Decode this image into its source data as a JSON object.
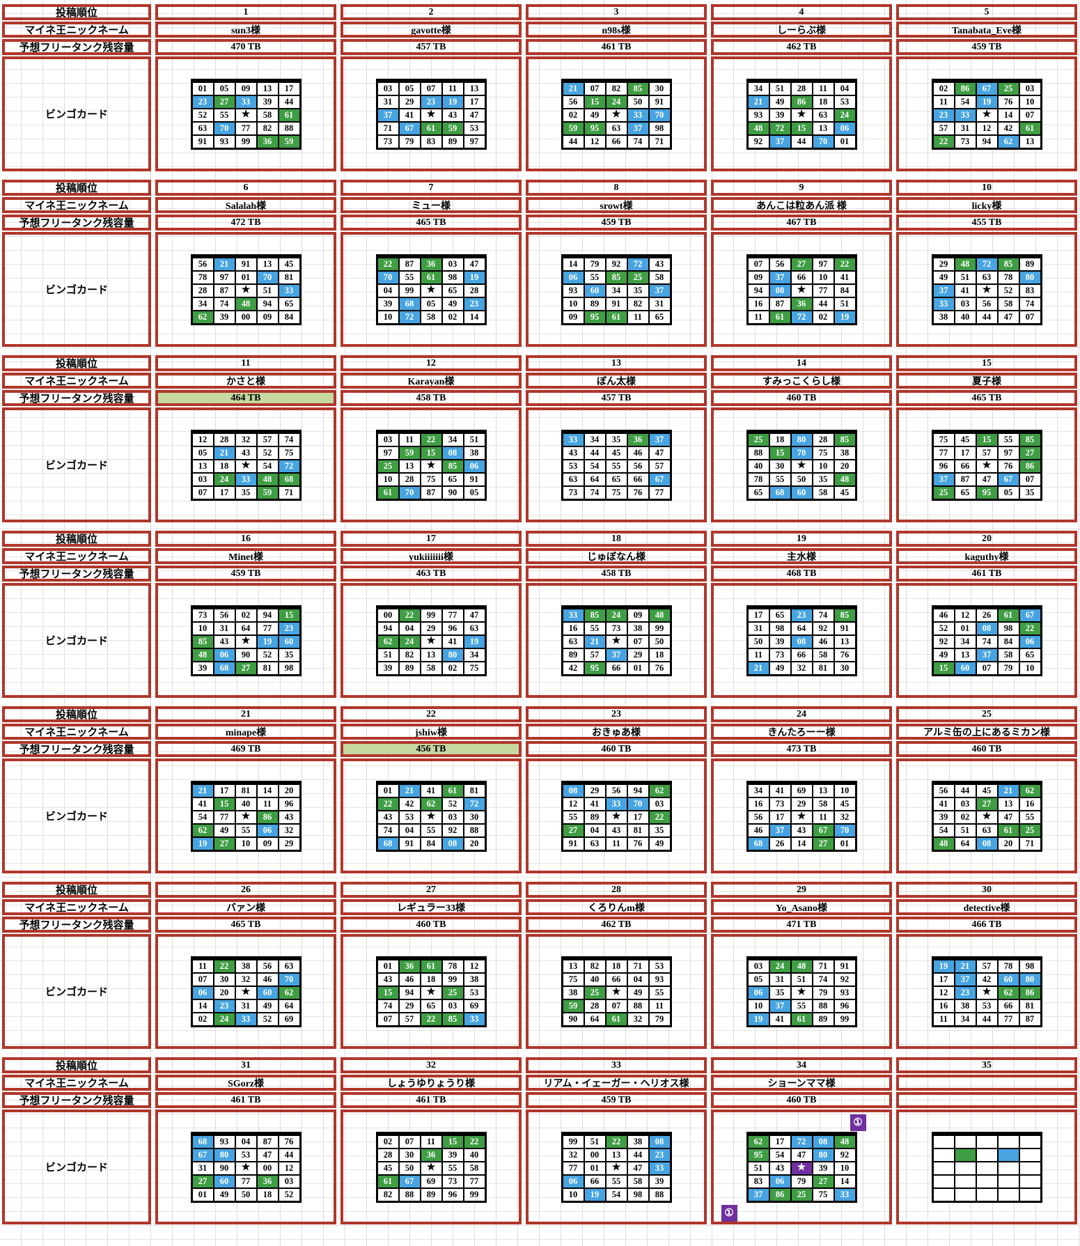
{
  "colors": {
    "red": "#b0362a",
    "blue": "#47a4e1",
    "green": "#3f9d43",
    "purple": "#7030a0",
    "highlight": "#c6d7a0",
    "grid_line": "#dcdcdc",
    "card_border": "#000000"
  },
  "labels": {
    "order": "投稿順位",
    "nickname": "マイネ王ニックネーム",
    "capacity": "予想フリータンク残容量",
    "card": "ビンゴカード"
  },
  "badge_glyph": "①",
  "star_glyph": "★",
  "blocks": [
    {
      "entries": [
        {
          "order": "1",
          "name": "sun3様",
          "tb": "470 TB",
          "hl": false,
          "rows": [
            "01w 05w 09w 13w 17w",
            "23b 27g 33b 39w 44w",
            "52w 55w *w 58w 61g",
            "63w 70b 77w 82w 88w",
            "91w 93w 99w 36g 59g"
          ]
        },
        {
          "order": "2",
          "name": "gavotte様",
          "tb": "457 TB",
          "hl": false,
          "rows": [
            "03w 05w 07w 11w 13w",
            "31w 29w 23b 19b 17w",
            "37b 41w *w 43w 47w",
            "71w 67b 61g 59g 53w",
            "73w 79w 83w 89w 97w"
          ]
        },
        {
          "order": "3",
          "name": "n98s様",
          "tb": "461 TB",
          "hl": false,
          "rows": [
            "21b 07w 82w 85g 30w",
            "56w 15g 24g 50w 91w",
            "02w 49w *w 33b 70b",
            "59g 95g 63w 37b 98w",
            "44w 12w 66w 74w 71w"
          ]
        },
        {
          "order": "4",
          "name": "しーらぶ様",
          "tb": "462 TB",
          "hl": false,
          "rows": [
            "34w 51w 28w 11w 04w",
            "21b 49w 86g 18w 53w",
            "93w 39w *w 63w 24g",
            "48g 72g 15g 13w 06b",
            "92w 37b 44w 70b 01w"
          ]
        },
        {
          "order": "5",
          "name": "Tanabata_Eve様",
          "tb": "459 TB",
          "hl": false,
          "rows": [
            "02w 86g 67b 25g 03w",
            "11w 54w 19b 76w 10w",
            "23b 33b *w 14w 07w",
            "57w 31w 12w 42w 61g",
            "22g 73w 94w 62b 13w"
          ]
        }
      ]
    },
    {
      "entries": [
        {
          "order": "6",
          "name": "Salalah様",
          "tb": "472 TB",
          "hl": false,
          "rows": [
            "56w 21b 91w 13w 45w",
            "78w 97w 01w 70b 81w",
            "28w 87w *w 51w 33b",
            "34w 74w 48g 94w 65w",
            "62g 39w 00w 09w 84w"
          ]
        },
        {
          "order": "7",
          "name": "ミュー様",
          "tb": "465 TB",
          "hl": false,
          "rows": [
            "22g 87w 36g 03w 47w",
            "70b 55w 61g 98w 19b",
            "04w 99w *w 65w 28w",
            "39w 68b 05w 49w 23b",
            "10w 72b 58w 02w 14w"
          ]
        },
        {
          "order": "8",
          "name": "srowt様",
          "tb": "459 TB",
          "hl": false,
          "rows": [
            "14w 79w 92w 72b 43w",
            "06b 55w 85g 25g 58w",
            "93w 60b 34w 35w 37b",
            "10w 89w 91w 82w 31w",
            "09w 95g 61g 11w 65w"
          ]
        },
        {
          "order": "9",
          "name": "あんこは粒あん派 様",
          "tb": "467 TB",
          "hl": false,
          "rows": [
            "07w 56w 27g 97w 22g",
            "09w 37b 66w 10w 41w",
            "94w 08b *w 77w 84w",
            "16w 87w 36g 44w 51w",
            "11w 61g 72b 02w 19b"
          ]
        },
        {
          "order": "10",
          "name": "licky様",
          "tb": "455 TB",
          "hl": false,
          "rows": [
            "29w 48g 72b 85g 89w",
            "49w 51w 63w 78w 80b",
            "37b 41w *w 52w 83w",
            "33b 03w 56w 58w 74w",
            "38w 40w 44w 47w 07w"
          ]
        }
      ]
    },
    {
      "entries": [
        {
          "order": "11",
          "name": "かさと様",
          "tb": "464 TB",
          "hl": true,
          "rows": [
            "12w 28w 32w 57w 74w",
            "05w 21b 43w 52w 75w",
            "13w 18w *w 54w 72b",
            "03w 24g 33b 48g 68g",
            "07w 17w 35w 59g 71w"
          ]
        },
        {
          "order": "12",
          "name": "Karayan様",
          "tb": "458 TB",
          "hl": false,
          "rows": [
            "03w 11w 22g 34w 51w",
            "97w 59g 15g 08b 38w",
            "25g 13w *w 85g 06b",
            "10w 28w 75w 65w 91w",
            "61g 70b 87w 90w 05w"
          ]
        },
        {
          "order": "13",
          "name": "ぼん太様",
          "tb": "457 TB",
          "hl": false,
          "rows": [
            "33b 34w 35w 36g 37b",
            "43w 44w 45w 46w 47w",
            "53w 54w 55w 56w 57w",
            "63w 64w 65w 66w 67b",
            "73w 74w 75w 76w 77w"
          ]
        },
        {
          "order": "14",
          "name": "すみっこくらし様",
          "tb": "460 TB",
          "hl": false,
          "rows": [
            "25g 18w 80b 28w 85g",
            "88w 15g 70b 75w 38w",
            "40w 30w *w 10w 20w",
            "78w 55w 50w 35w 48g",
            "65w 68b 60b 58w 45w"
          ]
        },
        {
          "order": "15",
          "name": "夏子様",
          "tb": "465 TB",
          "hl": false,
          "rows": [
            "75w 45w 15g 55w 85g",
            "77w 17w 57w 97w 27g",
            "96w 66w *w 76w 86g",
            "37b 87w 47w 67b 07w",
            "25g 65w 95g 05w 35w"
          ]
        }
      ]
    },
    {
      "entries": [
        {
          "order": "16",
          "name": "Minet様",
          "tb": "459 TB",
          "hl": false,
          "rows": [
            "73w 56w 02w 94w 15g",
            "10w 31w 64w 77w 23b",
            "85g 43w *w 19b 60b",
            "48g 06b 90w 52w 35w",
            "39w 68b 27g 81w 98w"
          ]
        },
        {
          "order": "17",
          "name": "yukiiiiiii様",
          "tb": "463 TB",
          "hl": false,
          "rows": [
            "00w 22g 99w 77w 47w",
            "94w 04w 29w 96w 63w",
            "62g 24g *w 41w 19b",
            "51w 82w 13w 80b 34w",
            "39w 89w 58w 02w 75w"
          ]
        },
        {
          "order": "18",
          "name": "じゅぼなん様",
          "tb": "458 TB",
          "hl": false,
          "rows": [
            "33b 85g 24g 09w 48g",
            "16w 55w 73w 38w 99w",
            "63w 21b *w 07w 50w",
            "89w 57w 37b 29w 18w",
            "42w 95g 66w 01w 76w"
          ]
        },
        {
          "order": "19",
          "name": "主水様",
          "tb": "468 TB",
          "hl": false,
          "rows": [
            "17w 65w 23b 74w 85g",
            "31w 98w 64w 92w 91w",
            "50w 39w 08b 46w 13w",
            "11w 73w 66w 58w 76w",
            "21b 49w 32w 81w 30w"
          ]
        },
        {
          "order": "20",
          "name": "kaguthy様",
          "tb": "461 TB",
          "hl": false,
          "rows": [
            "46w 12w 26w 61g 67b",
            "52w 01w 08b 98w 22g",
            "92w 34w 74w 84w 06b",
            "49w 13w 37b 58w 65w",
            "15g 60b 07w 79w 10w"
          ]
        }
      ]
    },
    {
      "entries": [
        {
          "order": "21",
          "name": "minape様",
          "tb": "469 TB",
          "hl": false,
          "rows": [
            "21b 17w 81w 14w 20w",
            "41w 15g 40w 11w 96w",
            "54w 77w *w 86g 43w",
            "62g 49w 55w 06b 32w",
            "19b 27g 10w 09w 29w"
          ]
        },
        {
          "order": "22",
          "name": "jshiw様",
          "tb": "456 TB",
          "hl": true,
          "rows": [
            "01w 21b 41w 61g 81w",
            "22g 42w 62g 52w 72b",
            "43w 53w *w 03w 30w",
            "74w 04w 55w 92w 88w",
            "68b 91w 84w 08b 20w"
          ]
        },
        {
          "order": "23",
          "name": "おきゅあ様",
          "tb": "460 TB",
          "hl": false,
          "rows": [
            "08b 29w 56w 94w 62g",
            "12w 41w 33b 70b 03w",
            "55w 89w *w 17w 22g",
            "27g 04w 43w 81w 35w",
            "91w 63w 11w 76w 49w"
          ]
        },
        {
          "order": "24",
          "name": "きんたろーー様",
          "tb": "473 TB",
          "hl": false,
          "rows": [
            "34w 41w 69w 13w 10w",
            "16w 73w 29w 58w 45w",
            "56w 17w *w 11w 32w",
            "46w 37b 43w 67g 70b",
            "68b 26w 14w 27g 01w"
          ]
        },
        {
          "order": "25",
          "name": "アルミ缶の上にあるミカン様",
          "tb": "460 TB",
          "hl": false,
          "rows": [
            "56w 44w 45w 21b 62g",
            "41w 03w 27g 13w 16w",
            "39w 02w *w 47w 55w",
            "54w 51w 63w 61g 25g",
            "48g 64w 08b 20w 71w"
          ]
        }
      ]
    },
    {
      "entries": [
        {
          "order": "26",
          "name": "バァン様",
          "tb": "465 TB",
          "hl": false,
          "rows": [
            "11w 22g 38w 56w 63w",
            "07w 30w 32w 46w 70b",
            "06b 20w *w 60b 62g",
            "14w 23b 31w 49w 64w",
            "02w 24g 33b 52w 69w"
          ]
        },
        {
          "order": "27",
          "name": "レギュラー33様",
          "tb": "460 TB",
          "hl": false,
          "rows": [
            "01w 36g 61g 78w 12w",
            "43w 46w 18w 99w 38w",
            "15g 94w *w 25g 53w",
            "74w 29w 65w 03w 69w",
            "07w 57w 22g 85g 33b"
          ]
        },
        {
          "order": "28",
          "name": "くろりんm様",
          "tb": "462 TB",
          "hl": false,
          "rows": [
            "13w 82w 18w 71w 53w",
            "75w 40w 66w 04w 93w",
            "38w 25g *w 49w 55w",
            "59g 28w 07w 88w 11w",
            "90w 64w 61g 32w 79w"
          ]
        },
        {
          "order": "29",
          "name": "Yo_Asano様",
          "tb": "471 TB",
          "hl": false,
          "rows": [
            "03w 24g 48g 71w 91w",
            "05w 31w 51w 74w 92w",
            "06b 35w *w 79w 93w",
            "10w 37b 55w 88w 96w",
            "19b 41w 61g 89w 99w"
          ]
        },
        {
          "order": "30",
          "name": "detective様",
          "tb": "466 TB",
          "hl": false,
          "rows": [
            "19b 21b 57w 78w 98w",
            "17w 37b 42w 60b 80b",
            "12w 23b *w 62g 86g",
            "16w 38w 53w 66w 81w",
            "11w 34w 44w 77w 87w"
          ]
        }
      ]
    },
    {
      "entries": [
        {
          "order": "31",
          "name": "SGorz様",
          "tb": "461 TB",
          "hl": false,
          "rows": [
            "68b 93w 04w 87w 76w",
            "67b 80b 53w 47w 44w",
            "31w 90w *w 00w 12w",
            "27g 60b 77w 36g 03w",
            "01w 49w 50w 18w 52w"
          ]
        },
        {
          "order": "32",
          "name": "しょうゆりょうり様",
          "tb": "461 TB",
          "hl": false,
          "rows": [
            "02w 07w 11w 15g 22g",
            "28w 30w 36g 39w 40w",
            "45w 50w *w 55w 58w",
            "61g 67b 69w 73w 77w",
            "82w 88w 89w 96w 99w"
          ]
        },
        {
          "order": "33",
          "name": "リアム・イェーガー・ヘリオス様",
          "tb": "459 TB",
          "hl": false,
          "rows": [
            "99w 51w 22g 38w 08b",
            "32w 00w 13w 44w 23b",
            "77w 01w *w 47w 33b",
            "06b 66w 55w 58w 39w",
            "10w 19b 54w 98w 88w"
          ]
        },
        {
          "order": "34",
          "name": "ショーンママ様",
          "tb": "460 TB",
          "hl": false,
          "badge_top": "①",
          "badge_bottom": "①",
          "rows": [
            "62g 17w 72b 08b 48g",
            "95g 54w 47w 80b 92w",
            "51w 43w *p 39w 10w",
            "83w 06b 79w 27g 14w",
            "37b 86g 25g 75w 33b"
          ]
        },
        {
          "order": "35",
          "name": "",
          "tb": "",
          "hl": false,
          "rows": [
            "-w -w -w -w -w",
            "-w -g -w -b -w",
            "-w -w -w -w -w",
            "-w -w -w -w -w",
            "-w -w -w -w -w"
          ]
        }
      ]
    }
  ]
}
